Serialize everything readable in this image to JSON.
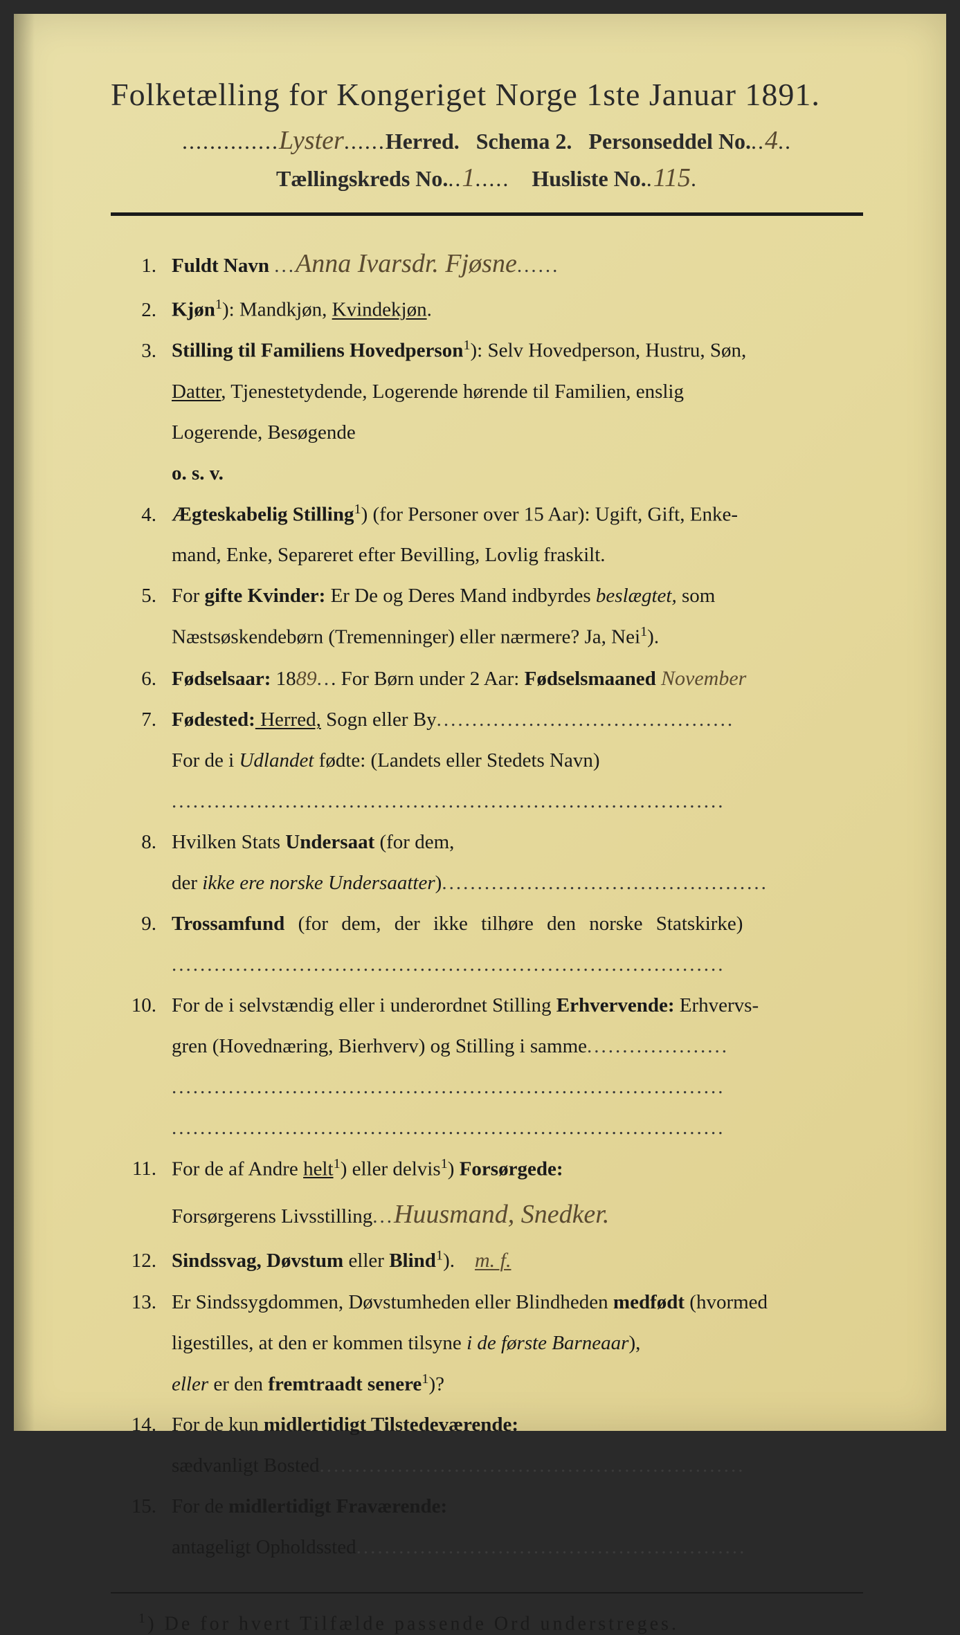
{
  "title": "Folketælling for Kongeriget Norge 1ste Januar 1891.",
  "header": {
    "herred_handwritten": "Lyster",
    "herred_label": "Herred.",
    "schema": "Schema 2.",
    "personseddel_label": "Personseddel No.",
    "personseddel_no": "4",
    "kreds_label": "Tællingskreds No.",
    "kreds_no": "1",
    "husliste_label": "Husliste No.",
    "husliste_no": "115"
  },
  "rows": {
    "r1": {
      "num": "1.",
      "label": "Fuldt Navn",
      "name_handwritten": "Anna Ivarsdr. Fjøsne"
    },
    "r2": {
      "num": "2.",
      "label": "Kjøn",
      "sup": "1",
      "options": "): Mandkjøn, ",
      "selected": "Kvindekjøn",
      "end": "."
    },
    "r3": {
      "num": "3.",
      "label": "Stilling til Familiens Hovedperson",
      "sup": "1",
      "line1": "): Selv Hovedperson, Hustru, Søn,",
      "line2a": "Datter",
      "line2b": ", Tjenestetydende, Logerende hørende til Familien, enslig",
      "line3": "Logerende, Besøgende",
      "line4": "o. s. v."
    },
    "r4": {
      "num": "4.",
      "label": "Ægteskabelig Stilling",
      "sup": "1",
      "line1": ") (for Personer over 15 Aar): Ugift, Gift, Enke-",
      "line2": "mand, Enke, Separeret efter Bevilling, Lovlig fraskilt."
    },
    "r5": {
      "num": "5.",
      "prefix": "For ",
      "label": "gifte Kvinder:",
      "line1": " Er De og Deres Mand indbyrdes ",
      "italic1": "beslægtet,",
      "line1b": " som",
      "line2": "Næstsøskendebørn (Tremenninger) eller nærmere? Ja, Nei",
      "sup": "1",
      "end": ")."
    },
    "r6": {
      "num": "6.",
      "label": "Fødselsaar:",
      "year_prefix": " 18",
      "year_hand": "89",
      "mid": ". For Børn under 2 Aar: ",
      "label2": "Fødselsmaaned",
      "month_hand": "November"
    },
    "r7": {
      "num": "7.",
      "label": "Fødested:",
      "selected": " Herred,",
      "rest": " Sogn eller By",
      "line2a": "For de i ",
      "line2italic": "Udlandet",
      "line2b": " fødte: (Landets eller Stedets Navn)"
    },
    "r8": {
      "num": "8.",
      "line1a": "Hvilken Stats ",
      "label": "Undersaat",
      "line1b": " (for dem,",
      "line2a": "der ",
      "line2italic": "ikke ere norske Undersaatter",
      "line2b": ")"
    },
    "r9": {
      "num": "9.",
      "label": "Trossamfund",
      "rest": " (for dem, der ikke tilhøre den norske Statskirke)"
    },
    "r10": {
      "num": "10.",
      "line1a": "For de i selvstændig eller i underordnet Stilling ",
      "label": "Erhvervende:",
      "line1b": " Erhvervs-",
      "line2": "gren (Hovednæring, Bierhverv) og Stilling i samme"
    },
    "r11": {
      "num": "11.",
      "line1a": "For de af Andre ",
      "underlined1": "helt",
      "sup1": "1",
      "mid1": ") eller delvis",
      "sup2": "1",
      "mid2": ") ",
      "label": "Forsørgede:",
      "line2a": "Forsørgerens Livsstilling",
      "hand": "Huusmand, Snedker."
    },
    "r12": {
      "num": "12.",
      "label": "Sindssvag, Døvstum",
      "rest": " eller ",
      "label2": "Blind",
      "sup": "1",
      "end": ").",
      "hand": "m. f."
    },
    "r13": {
      "num": "13.",
      "line1a": "Er Sindssygdommen, Døvstumheden eller Blindheden ",
      "bold1": "medfødt",
      "line1b": " (hvormed",
      "line2a": "ligestilles, at den er kommen tilsyne ",
      "italic2": "i de første Barneaar",
      "line2b": "),",
      "line3italic": "eller",
      "line3a": " er den ",
      "bold3": "fremtraadt senere",
      "sup": "1",
      "end": ")?"
    },
    "r14": {
      "num": "14.",
      "line1a": "For de kun ",
      "label": "midlertidigt Tilstedeværende:",
      "line2": "sædvanligt Bosted"
    },
    "r15": {
      "num": "15.",
      "line1a": "For de ",
      "label": "midlertidigt Fraværende:",
      "line2": "antageligt Opholdssted"
    }
  },
  "footnote": {
    "sup": "1",
    "text": ") De for hvert Tilfælde passende Ord understreges."
  },
  "colors": {
    "page_bg": "#e8dfa8",
    "text": "#1a1a1a",
    "handwriting": "#5a4a30"
  }
}
